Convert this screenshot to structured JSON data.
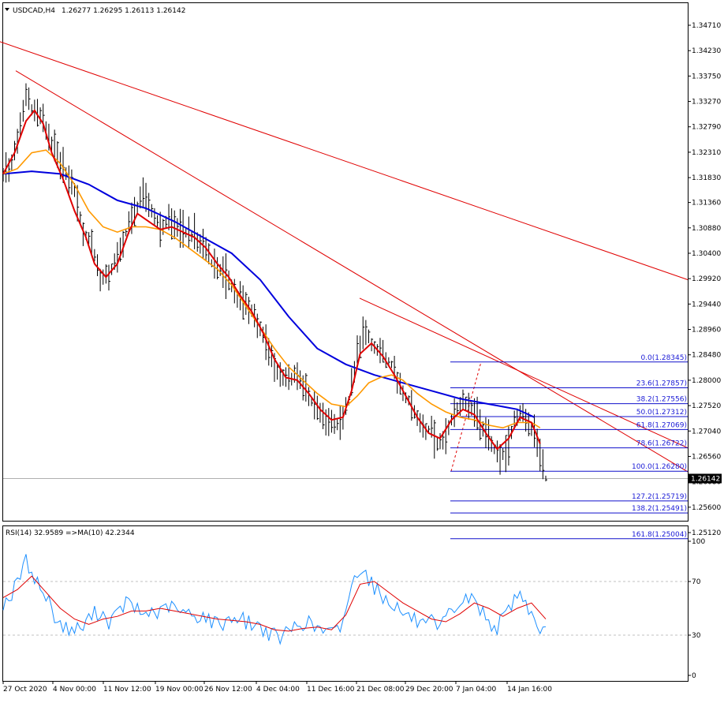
{
  "header": {
    "symbol_tf": "USDCAD,H4",
    "ohlc": "1.26277 1.26295 1.26113 1.26142"
  },
  "rsi_header": "RSI(14) 32.9589  =>MA(10) 42.2344",
  "colors": {
    "price_bars": "#000000",
    "ema_fast": "#e00000",
    "ema_mid": "#ff9900",
    "ema_slow": "#0000dd",
    "trendline": "#e00000",
    "fib": "#1010cc",
    "rsi": "#1e90ff",
    "rsi_ma": "#e00000",
    "grid_dashed": "#c0c0c0"
  },
  "chart_data": [
    {
      "type": "line",
      "title": "USDCAD,H4",
      "y_axis_ticks": [
        "1.34710",
        "1.34230",
        "1.33750",
        "1.33270",
        "1.32790",
        "1.32310",
        "1.31830",
        "1.31360",
        "1.30880",
        "1.30400",
        "1.29920",
        "1.29440",
        "1.28960",
        "1.28480",
        "1.28000",
        "1.27520",
        "1.27040",
        "1.26560",
        "1.26080",
        "1.25600",
        "1.25120"
      ],
      "ylim": [
        1.25,
        1.35
      ],
      "x_axis_ticks": [
        "27 Oct 2020",
        "4 Nov 00:00",
        "11 Nov 12:00",
        "19 Nov 00:00",
        "26 Nov 12:00",
        "4 Dec 04:00",
        "11 Dec 16:00",
        "21 Dec 08:00",
        "29 Dec 20:00",
        "7 Jan 04:00",
        "14 Jan 16:00"
      ],
      "current_price": "1.26142",
      "price_path": [
        [
          0,
          1.319
        ],
        [
          3,
          1.321
        ],
        [
          6,
          1.3275
        ],
        [
          8,
          1.334
        ],
        [
          10,
          1.331
        ],
        [
          13,
          1.33
        ],
        [
          16,
          1.326
        ],
        [
          19,
          1.322
        ],
        [
          22,
          1.319
        ],
        [
          25,
          1.316
        ],
        [
          28,
          1.308
        ],
        [
          31,
          1.306
        ],
        [
          34,
          1.299
        ],
        [
          37,
          1.3
        ],
        [
          40,
          1.303
        ],
        [
          43,
          1.308
        ],
        [
          46,
          1.312
        ],
        [
          49,
          1.315
        ],
        [
          52,
          1.312
        ],
        [
          55,
          1.309
        ],
        [
          58,
          1.31
        ],
        [
          61,
          1.309
        ],
        [
          64,
          1.308
        ],
        [
          67,
          1.307
        ],
        [
          70,
          1.306
        ],
        [
          73,
          1.302
        ],
        [
          76,
          1.301
        ],
        [
          79,
          1.299
        ],
        [
          82,
          1.296
        ],
        [
          85,
          1.294
        ],
        [
          88,
          1.292
        ],
        [
          91,
          1.289
        ],
        [
          94,
          1.284
        ],
        [
          97,
          1.281
        ],
        [
          100,
          1.28
        ],
        [
          103,
          1.281
        ],
        [
          106,
          1.278
        ],
        [
          109,
          1.275
        ],
        [
          112,
          1.273
        ],
        [
          115,
          1.272
        ],
        [
          118,
          1.2715
        ],
        [
          121,
          1.276
        ],
        [
          124,
          1.285
        ],
        [
          126,
          1.289
        ],
        [
          128,
          1.288
        ],
        [
          130,
          1.286
        ],
        [
          133,
          1.285
        ],
        [
          136,
          1.283
        ],
        [
          139,
          1.279
        ],
        [
          142,
          1.276
        ],
        [
          145,
          1.273
        ],
        [
          148,
          1.27
        ],
        [
          150,
          1.271
        ],
        [
          152,
          1.268
        ],
        [
          155,
          1.269
        ],
        [
          158,
          1.274
        ],
        [
          161,
          1.276
        ],
        [
          164,
          1.275
        ],
        [
          167,
          1.272
        ],
        [
          170,
          1.269
        ],
        [
          173,
          1.266
        ],
        [
          176,
          1.266
        ],
        [
          179,
          1.272
        ],
        [
          182,
          1.274
        ],
        [
          184,
          1.272
        ],
        [
          186,
          1.27
        ],
        [
          188,
          1.266
        ],
        [
          190,
          1.2614
        ]
      ],
      "series": [
        {
          "name": "",
          "role": "ema_fast",
          "values": [
            [
              0,
              1.319
            ],
            [
              4,
              1.323
            ],
            [
              8,
              1.329
            ],
            [
              11,
              1.331
            ],
            [
              14,
              1.3285
            ],
            [
              17,
              1.323
            ],
            [
              21,
              1.318
            ],
            [
              25,
              1.312
            ],
            [
              29,
              1.307
            ],
            [
              32,
              1.302
            ],
            [
              36,
              1.2995
            ],
            [
              40,
              1.302
            ],
            [
              44,
              1.308
            ],
            [
              47,
              1.3115
            ],
            [
              51,
              1.31
            ],
            [
              55,
              1.3085
            ],
            [
              59,
              1.309
            ],
            [
              63,
              1.308
            ],
            [
              67,
              1.307
            ],
            [
              71,
              1.305
            ],
            [
              75,
              1.302
            ],
            [
              79,
              1.2995
            ],
            [
              83,
              1.296
            ],
            [
              87,
              1.293
            ],
            [
              91,
              1.289
            ],
            [
              95,
              1.284
            ],
            [
              99,
              1.2805
            ],
            [
              103,
              1.28
            ],
            [
              107,
              1.2775
            ],
            [
              111,
              1.2745
            ],
            [
              115,
              1.2725
            ],
            [
              119,
              1.273
            ],
            [
              122,
              1.278
            ],
            [
              125,
              1.285
            ],
            [
              129,
              1.287
            ],
            [
              133,
              1.2845
            ],
            [
              137,
              1.281
            ],
            [
              141,
              1.277
            ],
            [
              145,
              1.273
            ],
            [
              149,
              1.27
            ],
            [
              153,
              1.269
            ],
            [
              157,
              1.2725
            ],
            [
              161,
              1.2745
            ],
            [
              165,
              1.2735
            ],
            [
              169,
              1.27
            ],
            [
              173,
              1.267
            ],
            [
              177,
              1.269
            ],
            [
              181,
              1.273
            ],
            [
              185,
              1.272
            ],
            [
              188,
              1.268
            ]
          ]
        },
        {
          "name": "",
          "role": "ema_mid",
          "values": [
            [
              0,
              1.319
            ],
            [
              5,
              1.32
            ],
            [
              10,
              1.323
            ],
            [
              15,
              1.3235
            ],
            [
              20,
              1.321
            ],
            [
              25,
              1.317
            ],
            [
              30,
              1.312
            ],
            [
              35,
              1.309
            ],
            [
              40,
              1.308
            ],
            [
              45,
              1.309
            ],
            [
              50,
              1.309
            ],
            [
              55,
              1.3085
            ],
            [
              60,
              1.307
            ],
            [
              65,
              1.305
            ],
            [
              70,
              1.303
            ],
            [
              75,
              1.301
            ],
            [
              80,
              1.298
            ],
            [
              85,
              1.294
            ],
            [
              90,
              1.29
            ],
            [
              95,
              1.286
            ],
            [
              100,
              1.2825
            ],
            [
              105,
              1.28
            ],
            [
              110,
              1.2775
            ],
            [
              115,
              1.2755
            ],
            [
              120,
              1.275
            ],
            [
              124,
              1.277
            ],
            [
              128,
              1.2795
            ],
            [
              132,
              1.2805
            ],
            [
              136,
              1.281
            ],
            [
              140,
              1.28
            ],
            [
              145,
              1.2775
            ],
            [
              150,
              1.2755
            ],
            [
              155,
              1.274
            ],
            [
              160,
              1.273
            ],
            [
              165,
              1.2725
            ],
            [
              170,
              1.2715
            ],
            [
              175,
              1.271
            ],
            [
              180,
              1.272
            ],
            [
              185,
              1.272
            ],
            [
              188,
              1.271
            ]
          ]
        },
        {
          "name": "",
          "role": "ema_slow",
          "values": [
            [
              0,
              1.319
            ],
            [
              10,
              1.3195
            ],
            [
              20,
              1.319
            ],
            [
              30,
              1.317
            ],
            [
              40,
              1.314
            ],
            [
              50,
              1.3125
            ],
            [
              60,
              1.31
            ],
            [
              70,
              1.307
            ],
            [
              80,
              1.304
            ],
            [
              90,
              1.299
            ],
            [
              100,
              1.292
            ],
            [
              110,
              1.286
            ],
            [
              120,
              1.283
            ],
            [
              130,
              1.281
            ],
            [
              140,
              1.2795
            ],
            [
              150,
              1.278
            ],
            [
              160,
              1.2765
            ],
            [
              170,
              1.2755
            ],
            [
              180,
              1.2745
            ],
            [
              186,
              1.273
            ]
          ]
        }
      ]
    },
    {
      "type": "line",
      "title": "RSI(14)",
      "y_axis_ticks": [
        "100",
        "70",
        "30",
        "0"
      ],
      "levels": [
        70,
        30
      ],
      "ylim": [
        0,
        100
      ],
      "rsi": [
        [
          0,
          54
        ],
        [
          3,
          60
        ],
        [
          6,
          75
        ],
        [
          8,
          85
        ],
        [
          10,
          78
        ],
        [
          13,
          65
        ],
        [
          16,
          55
        ],
        [
          19,
          40
        ],
        [
          22,
          35
        ],
        [
          25,
          34
        ],
        [
          28,
          36
        ],
        [
          31,
          45
        ],
        [
          34,
          48
        ],
        [
          37,
          40
        ],
        [
          40,
          45
        ],
        [
          43,
          55
        ],
        [
          46,
          50
        ],
        [
          49,
          45
        ],
        [
          52,
          48
        ],
        [
          55,
          46
        ],
        [
          58,
          52
        ],
        [
          61,
          48
        ],
        [
          64,
          46
        ],
        [
          67,
          44
        ],
        [
          70,
          45
        ],
        [
          73,
          40
        ],
        [
          76,
          38
        ],
        [
          79,
          42
        ],
        [
          82,
          44
        ],
        [
          85,
          40
        ],
        [
          88,
          38
        ],
        [
          91,
          35
        ],
        [
          94,
          30
        ],
        [
          97,
          28
        ],
        [
          100,
          33
        ],
        [
          103,
          38
        ],
        [
          106,
          40
        ],
        [
          109,
          36
        ],
        [
          112,
          33
        ],
        [
          115,
          31
        ],
        [
          118,
          35
        ],
        [
          121,
          58
        ],
        [
          124,
          78
        ],
        [
          126,
          82
        ],
        [
          128,
          72
        ],
        [
          130,
          66
        ],
        [
          133,
          58
        ],
        [
          136,
          55
        ],
        [
          139,
          48
        ],
        [
          142,
          44
        ],
        [
          145,
          40
        ],
        [
          148,
          35
        ],
        [
          150,
          40
        ],
        [
          152,
          32
        ],
        [
          155,
          42
        ],
        [
          158,
          50
        ],
        [
          161,
          55
        ],
        [
          164,
          58
        ],
        [
          167,
          50
        ],
        [
          170,
          40
        ],
        [
          173,
          36
        ],
        [
          176,
          45
        ],
        [
          179,
          58
        ],
        [
          182,
          60
        ],
        [
          184,
          50
        ],
        [
          186,
          40
        ],
        [
          188,
          35
        ],
        [
          190,
          33
        ]
      ],
      "rsi_ma": [
        [
          0,
          58
        ],
        [
          5,
          64
        ],
        [
          10,
          74
        ],
        [
          15,
          62
        ],
        [
          20,
          50
        ],
        [
          25,
          42
        ],
        [
          30,
          38
        ],
        [
          35,
          42
        ],
        [
          40,
          44
        ],
        [
          45,
          48
        ],
        [
          50,
          48
        ],
        [
          55,
          50
        ],
        [
          60,
          48
        ],
        [
          65,
          46
        ],
        [
          70,
          44
        ],
        [
          75,
          42
        ],
        [
          80,
          41
        ],
        [
          85,
          40
        ],
        [
          90,
          38
        ],
        [
          95,
          34
        ],
        [
          100,
          33
        ],
        [
          105,
          35
        ],
        [
          110,
          36
        ],
        [
          115,
          34
        ],
        [
          120,
          45
        ],
        [
          125,
          68
        ],
        [
          130,
          70
        ],
        [
          135,
          62
        ],
        [
          140,
          54
        ],
        [
          145,
          48
        ],
        [
          150,
          42
        ],
        [
          155,
          40
        ],
        [
          160,
          46
        ],
        [
          165,
          54
        ],
        [
          170,
          50
        ],
        [
          175,
          44
        ],
        [
          180,
          50
        ],
        [
          185,
          54
        ],
        [
          190,
          42
        ]
      ]
    }
  ],
  "fib_levels": [
    {
      "label": "0.0(1.28345)",
      "price": 1.28345
    },
    {
      "label": "23.6(1.27857)",
      "price": 1.27857
    },
    {
      "label": "38.2(1.27556)",
      "price": 1.27556
    },
    {
      "label": "50.0(1.27312)",
      "price": 1.27312
    },
    {
      "label": "61.8(1.27069)",
      "price": 1.27069
    },
    {
      "label": "78.6(1.26722)",
      "price": 1.26722
    },
    {
      "label": "100.0(1.26280)",
      "price": 1.2628
    },
    {
      "label": "127.2(1.25719)",
      "price": 1.25719
    },
    {
      "label": "138.2(1.25491)",
      "price": 1.25491
    },
    {
      "label": "161.8(1.25004)",
      "price": 1.25004
    }
  ]
}
